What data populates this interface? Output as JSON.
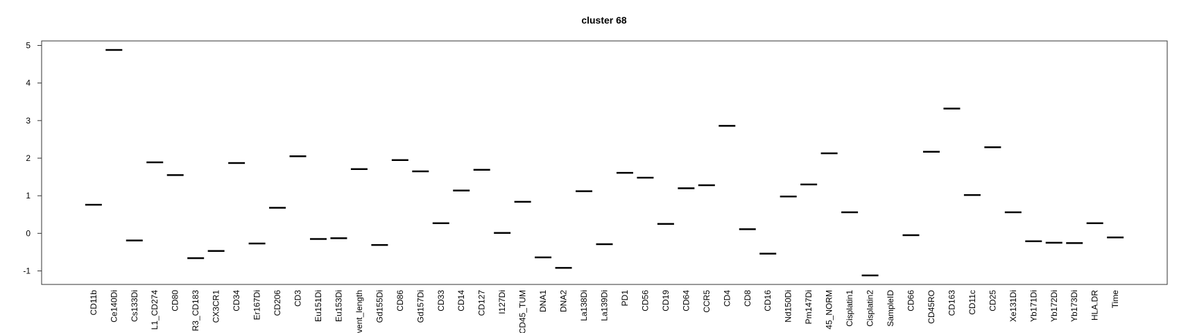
{
  "chart_data": {
    "type": "box",
    "title": "cluster 68",
    "categories": [
      "CD11b",
      "Ce140Di",
      "Cs133Di",
      "L1_CD274",
      "CD80",
      "R3_CD183",
      "CX3CR1",
      "CD34",
      "Er167Di",
      "CD206",
      "CD3",
      "Eu151Di",
      "Eu153Di",
      "vent_length",
      "Gd155Di",
      "CD86",
      "Gd157Di",
      "CD33",
      "CD14",
      "CD127",
      "I127Di",
      "CD45_TUM",
      "DNA1",
      "DNA2",
      "La138Di",
      "La139Di",
      "PD1",
      "CD56",
      "CD19",
      "CD64",
      "CCR5",
      "CD4",
      "CD8",
      "CD16",
      "Nd150Di",
      "Pm147Di",
      "45_NORM",
      "Cisplatin1",
      "Cisplatin2",
      "SampleID",
      "CD66",
      "CD45RO",
      "CD163",
      "CD11c",
      "CD25",
      "Xe131Di",
      "Yb171Di",
      "Yb172Di",
      "Yb173Di",
      "HLA.DR",
      "Time"
    ],
    "values": [
      0.76,
      4.88,
      -0.19,
      1.89,
      1.55,
      -0.66,
      -0.47,
      1.87,
      -0.27,
      0.68,
      2.05,
      -0.15,
      -0.13,
      1.71,
      -0.31,
      1.95,
      1.65,
      0.27,
      1.14,
      1.69,
      0.01,
      0.84,
      -0.64,
      -0.92,
      1.12,
      -0.29,
      1.61,
      1.48,
      0.25,
      1.2,
      1.28,
      2.86,
      0.11,
      -0.54,
      0.98,
      1.3,
      2.13,
      0.56,
      -1.12,
      null,
      -0.05,
      2.17,
      3.32,
      1.02,
      2.29,
      0.56,
      -0.21,
      -0.25,
      -0.26,
      0.27,
      -0.11
    ],
    "color": "#000000",
    "ylim": [
      -1.36,
      5.12
    ],
    "yticks": [
      -1,
      0,
      1,
      2,
      3,
      4,
      5
    ]
  }
}
